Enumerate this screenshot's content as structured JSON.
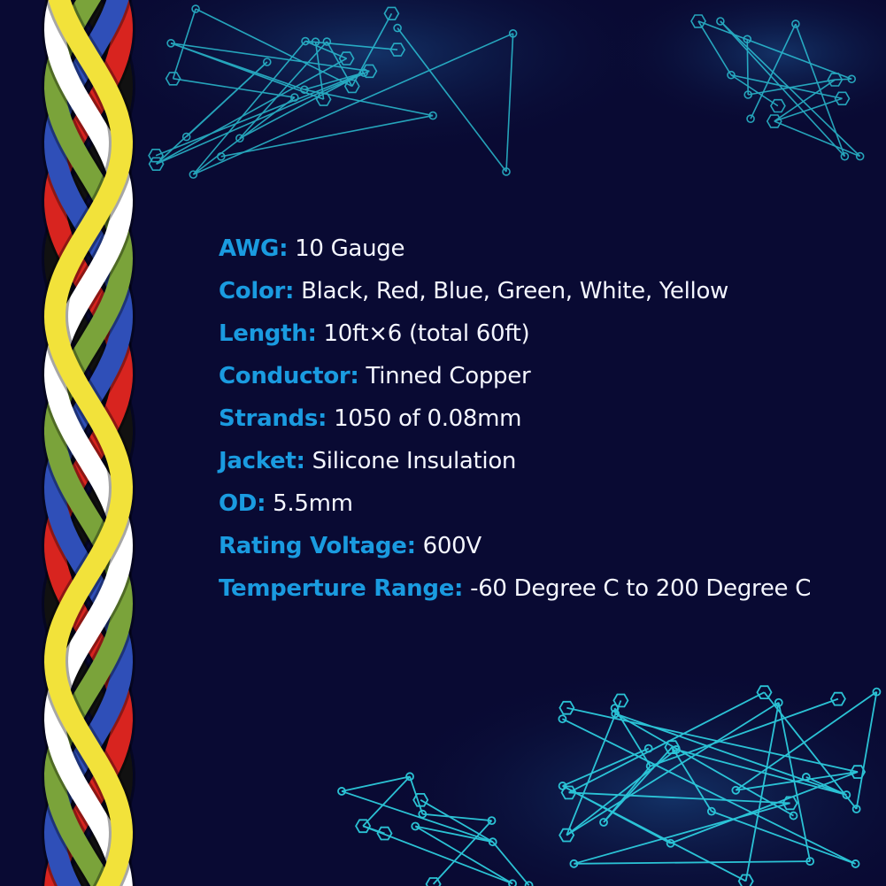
{
  "colors": {
    "background": "#090a33",
    "label": "#1a9be0",
    "value": "#f4f6ff",
    "circuit": "#2fd6e6"
  },
  "wire_colors": [
    "#d8241f",
    "#2f4fb8",
    "#7aa33a",
    "#f2e23a",
    "#ffffff",
    "#111111"
  ],
  "specs": [
    {
      "label": "AWG:",
      "value": "10 Gauge"
    },
    {
      "label": "Color:",
      "value": "Black, Red, Blue, Green, White, Yellow"
    },
    {
      "label": "Length:",
      "value": "10ft×6 (total 60ft)"
    },
    {
      "label": "Conductor:",
      "value": "Tinned Copper"
    },
    {
      "label": "Strands:",
      "value": "1050 of 0.08mm"
    },
    {
      "label": "Jacket:",
      "value": "Silicone Insulation"
    },
    {
      "label": "OD:",
      "value": "5.5mm"
    },
    {
      "label": "Rating Voltage:",
      "value": "600V"
    },
    {
      "label": "Temperture Range:",
      "value": "-60 Degree C to 200 Degree C"
    }
  ]
}
